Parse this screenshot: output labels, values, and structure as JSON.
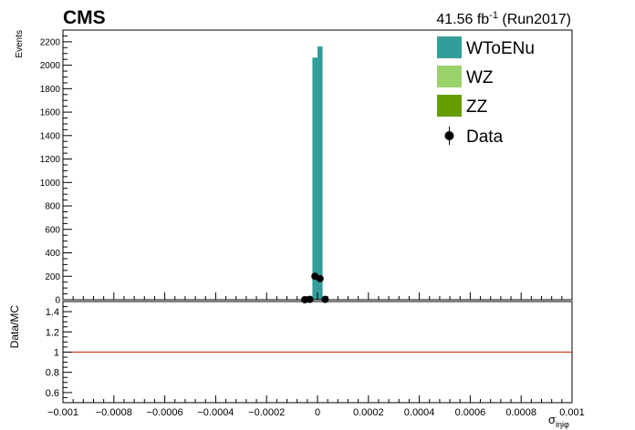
{
  "header": {
    "experiment": "CMS",
    "lumi_value": "41.56 fb",
    "lumi_exp": "-1",
    "lumi_run": "(Run2017)"
  },
  "colors": {
    "WToENu": "#339e99",
    "WZ": "#99d16b",
    "ZZ": "#669e00",
    "Data": "#000000",
    "ratio_line": "#cc2200",
    "axis": "#000000"
  },
  "chart_data": [
    {
      "type": "bar",
      "stacked": true,
      "ylabel": "Events",
      "xlim": [
        -0.001,
        0.001
      ],
      "ylim": [
        0,
        2300
      ],
      "bin_width": 2e-05,
      "y_ticks": [
        0,
        200,
        400,
        600,
        800,
        1000,
        1200,
        1400,
        1600,
        1800,
        2000,
        2200
      ],
      "legend_position": "top-right",
      "series": [
        {
          "name": "WToENu",
          "bins": [
            {
              "x_low": -2e-05,
              "x_high": 0.0,
              "value": 2065
            },
            {
              "x_low": 0.0,
              "x_high": 2e-05,
              "value": 2160
            }
          ]
        },
        {
          "name": "WZ",
          "bins": []
        },
        {
          "name": "ZZ",
          "bins": []
        }
      ],
      "data_points": {
        "name": "Data",
        "points": [
          {
            "x": -5e-05,
            "y": 0
          },
          {
            "x": -3e-05,
            "y": 3
          },
          {
            "x": -1e-05,
            "y": 200
          },
          {
            "x": 1e-05,
            "y": 180
          },
          {
            "x": 3e-05,
            "y": 3
          }
        ]
      }
    },
    {
      "type": "line",
      "ylabel": "Data/MC",
      "xlabel": "σ",
      "xlabel_sub": "iηiφ",
      "xlim": [
        -0.001,
        0.001
      ],
      "ylim": [
        0.5,
        1.5
      ],
      "y_ticks": [
        0.6,
        0.8,
        1,
        1.2,
        1.4
      ],
      "x_ticks": [
        -0.001,
        -0.0008,
        -0.0006,
        -0.0004,
        -0.0002,
        0,
        0.0002,
        0.0004,
        0.0006,
        0.0008,
        0.001
      ],
      "x_tick_labels": [
        "−0.001",
        "−0.0008",
        "−0.0006",
        "−0.0004",
        "−0.0002",
        "0",
        "0.0002",
        "0.0004",
        "0.0006",
        "0.0008",
        "0.001"
      ],
      "reference_line": 1
    }
  ]
}
